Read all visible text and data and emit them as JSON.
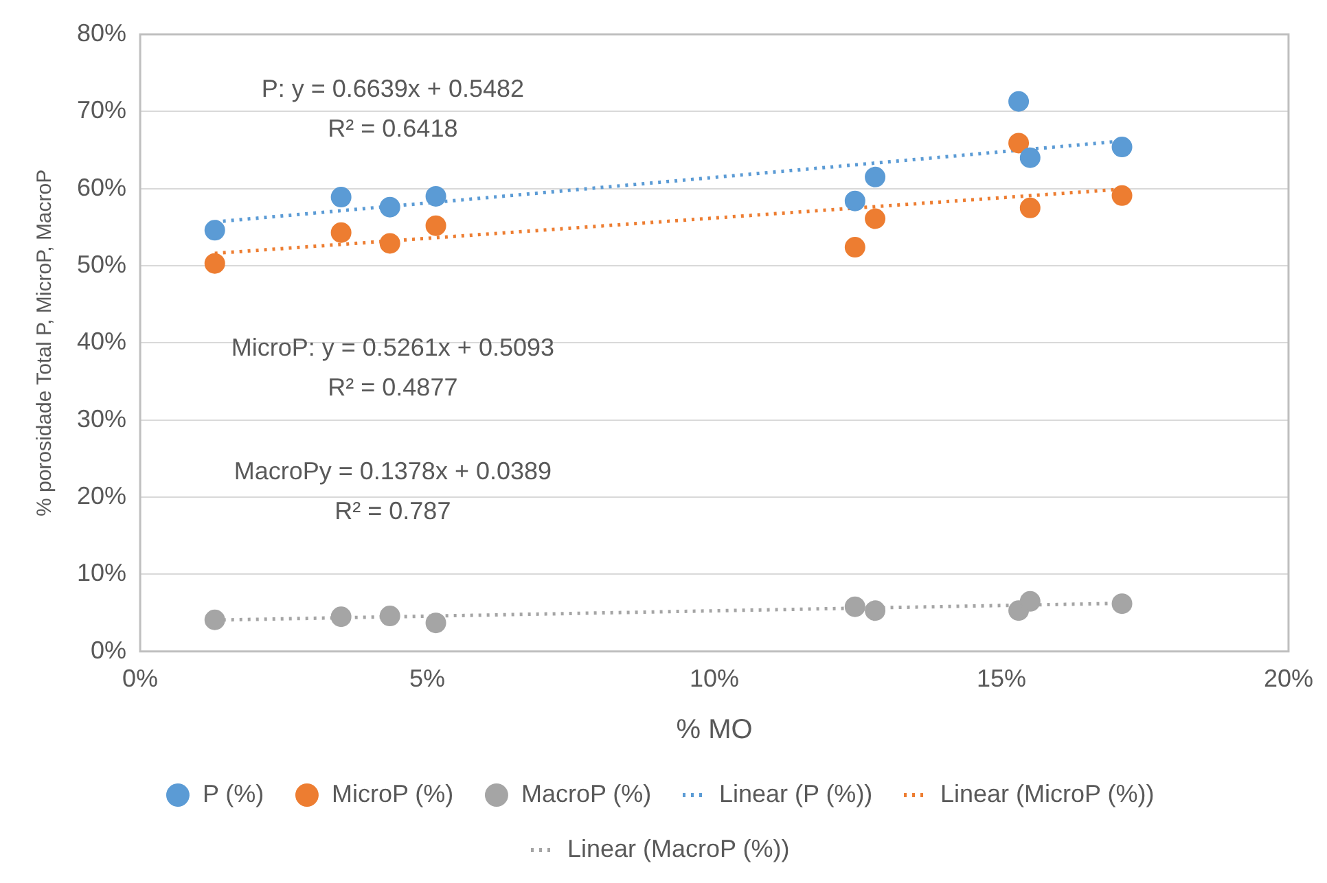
{
  "chart_data": {
    "type": "scatter",
    "xlabel": "% MO",
    "ylabel": "% porosidade Total P, MicroP, MacroP",
    "xlim": [
      0,
      20
    ],
    "xticks": [
      {
        "value": 0,
        "label": "0%"
      },
      {
        "value": 5,
        "label": "5%"
      },
      {
        "value": 10,
        "label": "10%"
      },
      {
        "value": 15,
        "label": "15%"
      },
      {
        "value": 20,
        "label": "20%"
      }
    ],
    "ylim": [
      0,
      80
    ],
    "yticks": [
      {
        "value": 0,
        "label": "0%"
      },
      {
        "value": 10,
        "label": "10%"
      },
      {
        "value": 20,
        "label": "20%"
      },
      {
        "value": 30,
        "label": "30%"
      },
      {
        "value": 40,
        "label": "40%"
      },
      {
        "value": 50,
        "label": "50%"
      },
      {
        "value": 60,
        "label": "60%"
      },
      {
        "value": 70,
        "label": "70%"
      },
      {
        "value": 80,
        "label": "80%"
      }
    ],
    "grid": "y",
    "legend": "bottom",
    "marker": "circle",
    "series": [
      {
        "name": "P (%)",
        "color": "#5b9bd5",
        "x": [
          1.3,
          3.5,
          4.35,
          5.15,
          12.45,
          12.8,
          15.3,
          15.5,
          17.1
        ],
        "values": [
          54.6,
          58.9,
          57.6,
          59.0,
          58.4,
          61.5,
          71.3,
          64.0,
          65.4
        ]
      },
      {
        "name": "MicroP (%)",
        "color": "#ed7d31",
        "x": [
          1.3,
          3.5,
          4.35,
          5.15,
          12.45,
          12.8,
          15.3,
          15.5,
          17.1
        ],
        "values": [
          50.3,
          54.3,
          52.9,
          55.2,
          52.4,
          56.1,
          65.9,
          57.5,
          59.1
        ]
      },
      {
        "name": "MacroP (%)",
        "color": "#a5a5a5",
        "x": [
          1.3,
          3.5,
          4.35,
          5.15,
          12.45,
          12.8,
          15.3,
          15.5,
          17.1
        ],
        "values": [
          4.1,
          4.5,
          4.6,
          3.7,
          5.8,
          5.3,
          5.3,
          6.5,
          6.2
        ]
      },
      {
        "name": "Linear (P (%))",
        "type": "line",
        "line_style": "dotted",
        "marker": "none",
        "color": "#5b9bd5",
        "x": [
          1.3,
          17.1
        ],
        "values": [
          55.68,
          66.17
        ]
      },
      {
        "name": "Linear (MicroP (%))",
        "type": "line",
        "line_style": "dotted",
        "marker": "none",
        "color": "#ed7d31",
        "x": [
          1.3,
          17.1
        ],
        "values": [
          51.61,
          59.93
        ]
      },
      {
        "name": "Linear (MacroP (%))",
        "type": "line",
        "line_style": "dotted",
        "marker": "none",
        "color": "#a5a5a5",
        "x": [
          1.3,
          17.1
        ],
        "values": [
          4.07,
          6.25
        ]
      }
    ],
    "annotations": [
      "P: y = 0.6639x + 0.5482\nR² = 0.6418",
      "MicroP: y = 0.5261x + 0.5093\nR² = 0.4877",
      "MacroPy = 0.1378x + 0.0389\nR² = 0.787"
    ]
  }
}
